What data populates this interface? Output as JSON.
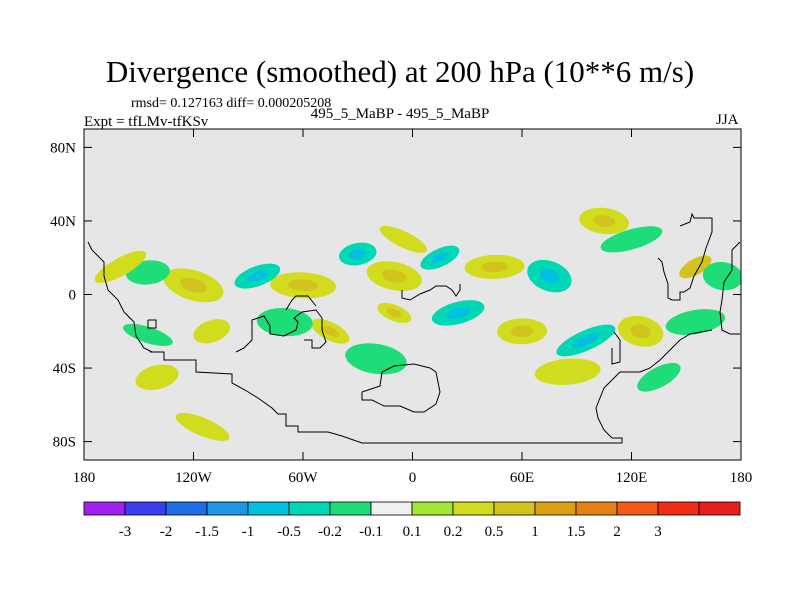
{
  "title": "Divergence (smoothed) at 200 hPa (10**6 m/s)",
  "stats_line": "rmsd= 0.127163 diff= 0.000205208",
  "expt_line": "Expt = tfLMv-tfKSv",
  "runs_line": "495_5_MaBP - 495_5_MaBP",
  "season": "JJA",
  "colors": {
    "background_field": "#e6e6e6",
    "palette": [
      "#a020f0",
      "#3c3cf0",
      "#1e6ee6",
      "#1e96e6",
      "#00c0e0",
      "#00d7b4",
      "#1edc78",
      "#f0f0f0",
      "#a0e632",
      "#d2dc1e",
      "#d2c31e",
      "#dca014",
      "#e68214",
      "#f05a14",
      "#f02d14",
      "#e61e1e"
    ]
  },
  "chart_data": {
    "type": "heatmap",
    "title": "Divergence (smoothed) at 200 hPa (10**6 m/s)",
    "x_axis": {
      "range": [
        -180,
        180
      ],
      "ticks": [
        "180",
        "120W",
        "60W",
        "0",
        "60E",
        "120E",
        "180"
      ]
    },
    "y_axis": {
      "range": [
        -90,
        90
      ],
      "ticks": [
        "80N",
        "40N",
        "0",
        "40S",
        "80S"
      ]
    },
    "colorbar": {
      "levels": [
        "-3",
        "-2",
        "-1.5",
        "-1",
        "-0.5",
        "-0.2",
        "-0.1",
        "0.1",
        "0.2",
        "0.5",
        "1",
        "1.5",
        "2",
        "3"
      ]
    },
    "features": [
      {
        "lon": 155,
        "lat": 15,
        "value": 0.5
      },
      {
        "lon": 105,
        "lat": 40,
        "value": 0.3
      },
      {
        "lon": 120,
        "lat": 30,
        "value": -0.2
      },
      {
        "lon": 75,
        "lat": 10,
        "value": -0.3
      },
      {
        "lon": 45,
        "lat": 15,
        "value": 0.4
      },
      {
        "lon": 15,
        "lat": 20,
        "value": -0.3
      },
      {
        "lon": -10,
        "lat": 10,
        "value": 0.3
      },
      {
        "lon": -30,
        "lat": 22,
        "value": -0.3
      },
      {
        "lon": -5,
        "lat": 30,
        "value": 0.2
      },
      {
        "lon": -60,
        "lat": 5,
        "value": 0.3
      },
      {
        "lon": -85,
        "lat": 10,
        "value": -0.3
      },
      {
        "lon": -120,
        "lat": 5,
        "value": 0.3
      },
      {
        "lon": -145,
        "lat": 12,
        "value": -0.2
      },
      {
        "lon": -160,
        "lat": 15,
        "value": 0.2
      },
      {
        "lon": 170,
        "lat": 10,
        "value": -0.2
      },
      {
        "lon": 25,
        "lat": -10,
        "value": -0.3
      },
      {
        "lon": -10,
        "lat": -10,
        "value": 0.3
      },
      {
        "lon": 60,
        "lat": -20,
        "value": 0.3
      },
      {
        "lon": 95,
        "lat": -25,
        "value": -0.3
      },
      {
        "lon": 125,
        "lat": -20,
        "value": 0.3
      },
      {
        "lon": 155,
        "lat": -15,
        "value": -0.2
      },
      {
        "lon": -45,
        "lat": -20,
        "value": 0.3
      },
      {
        "lon": -70,
        "lat": -15,
        "value": -0.2
      },
      {
        "lon": -110,
        "lat": -20,
        "value": 0.2
      },
      {
        "lon": -145,
        "lat": -22,
        "value": -0.2
      },
      {
        "lon": 85,
        "lat": -42,
        "value": 0.2
      },
      {
        "lon": 135,
        "lat": -45,
        "value": -0.2
      },
      {
        "lon": -20,
        "lat": -35,
        "value": -0.2
      },
      {
        "lon": -140,
        "lat": -45,
        "value": 0.2
      },
      {
        "lon": -115,
        "lat": -72,
        "value": 0.2
      }
    ]
  }
}
